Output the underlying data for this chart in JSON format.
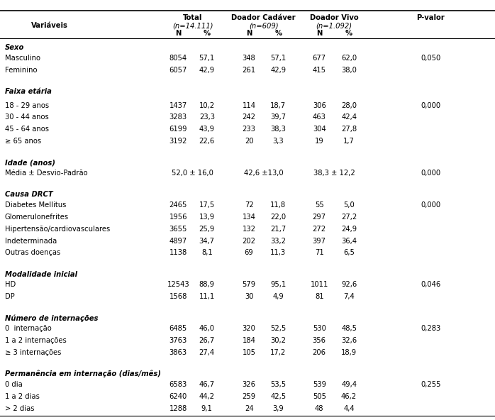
{
  "header": {
    "col1": "Variáveis",
    "col2_title": "Total",
    "col2_sub": "(n=14.111)",
    "col3_title": "Doador Cadáver",
    "col3_sub": "(n=609)",
    "col4_title": "Doador Vivo",
    "col4_sub": "(n=1.092)",
    "col5": "P-valor",
    "N_label": "N",
    "pct_label": "%"
  },
  "rows": [
    {
      "type": "section",
      "label": "Sexo"
    },
    {
      "type": "data",
      "label": "Masculino",
      "t_n": "8054",
      "t_p": "57,1",
      "dc_n": "348",
      "dc_p": "57,1",
      "dv_n": "677",
      "dv_p": "62,0",
      "pval": "0,050"
    },
    {
      "type": "data",
      "label": "Feminino",
      "t_n": "6057",
      "t_p": "42,9",
      "dc_n": "261",
      "dc_p": "42,9",
      "dv_n": "415",
      "dv_p": "38,0",
      "pval": ""
    },
    {
      "type": "blank"
    },
    {
      "type": "section",
      "label": "Faixa etária"
    },
    {
      "type": "blank_small"
    },
    {
      "type": "data",
      "label": "18 - 29 anos",
      "t_n": "1437",
      "t_p": "10,2",
      "dc_n": "114",
      "dc_p": "18,7",
      "dv_n": "306",
      "dv_p": "28,0",
      "pval": "0,000"
    },
    {
      "type": "data",
      "label": "30 - 44 anos",
      "t_n": "3283",
      "t_p": "23,3",
      "dc_n": "242",
      "dc_p": "39,7",
      "dv_n": "463",
      "dv_p": "42,4",
      "pval": ""
    },
    {
      "type": "data",
      "label": "45 - 64 anos",
      "t_n": "6199",
      "t_p": "43,9",
      "dc_n": "233",
      "dc_p": "38,3",
      "dv_n": "304",
      "dv_p": "27,8",
      "pval": ""
    },
    {
      "type": "data",
      "label": "≥ 65 anos",
      "t_n": "3192",
      "t_p": "22,6",
      "dc_n": "20",
      "dc_p": "3,3",
      "dv_n": "19",
      "dv_p": "1,7",
      "pval": ""
    },
    {
      "type": "blank"
    },
    {
      "type": "section",
      "label": "Idade (anos)"
    },
    {
      "type": "mean",
      "label": "Média ± Desvio-Padrão",
      "t_val": "52,0 ± 16,0",
      "dc_val": "42,6 ±13,0",
      "dv_val": "38,3 ± 12,2",
      "pval": "0,000"
    },
    {
      "type": "blank"
    },
    {
      "type": "section",
      "label": "Causa DRCT"
    },
    {
      "type": "data",
      "label": "Diabetes Mellitus",
      "t_n": "2465",
      "t_p": "17,5",
      "dc_n": "72",
      "dc_p": "11,8",
      "dv_n": "55",
      "dv_p": "5,0",
      "pval": "0,000"
    },
    {
      "type": "data",
      "label": "Glomerulonefrites",
      "t_n": "1956",
      "t_p": "13,9",
      "dc_n": "134",
      "dc_p": "22,0",
      "dv_n": "297",
      "dv_p": "27,2",
      "pval": ""
    },
    {
      "type": "data",
      "label": "Hipertensão/cardiovasculares",
      "t_n": "3655",
      "t_p": "25,9",
      "dc_n": "132",
      "dc_p": "21,7",
      "dv_n": "272",
      "dv_p": "24,9",
      "pval": ""
    },
    {
      "type": "data",
      "label": "Indeterminada",
      "t_n": "4897",
      "t_p": "34,7",
      "dc_n": "202",
      "dc_p": "33,2",
      "dv_n": "397",
      "dv_p": "36,4",
      "pval": ""
    },
    {
      "type": "data",
      "label": "Outras doenças",
      "t_n": "1138",
      "t_p": "8,1",
      "dc_n": "69",
      "dc_p": "11,3",
      "dv_n": "71",
      "dv_p": "6,5",
      "pval": ""
    },
    {
      "type": "blank"
    },
    {
      "type": "section",
      "label": "Modalidade inicial"
    },
    {
      "type": "data",
      "label": "HD",
      "t_n": "12543",
      "t_p": "88,9",
      "dc_n": "579",
      "dc_p": "95,1",
      "dv_n": "1011",
      "dv_p": "92,6",
      "pval": "0,046"
    },
    {
      "type": "data",
      "label": "DP",
      "t_n": "1568",
      "t_p": "11,1",
      "dc_n": "30",
      "dc_p": "4,9",
      "dv_n": "81",
      "dv_p": "7,4",
      "pval": ""
    },
    {
      "type": "blank"
    },
    {
      "type": "section",
      "label": "Número de internações"
    },
    {
      "type": "data",
      "label": "0  internação",
      "t_n": "6485",
      "t_p": "46,0",
      "dc_n": "320",
      "dc_p": "52,5",
      "dv_n": "530",
      "dv_p": "48,5",
      "pval": "0,283"
    },
    {
      "type": "data",
      "label": "1 a 2 internações",
      "t_n": "3763",
      "t_p": "26,7",
      "dc_n": "184",
      "dc_p": "30,2",
      "dv_n": "356",
      "dv_p": "32,6",
      "pval": ""
    },
    {
      "type": "data",
      "label": "≥ 3 internações",
      "t_n": "3863",
      "t_p": "27,4",
      "dc_n": "105",
      "dc_p": "17,2",
      "dv_n": "206",
      "dv_p": "18,9",
      "pval": ""
    },
    {
      "type": "blank"
    },
    {
      "type": "section",
      "label": "Permanência em internação (dias/mês)"
    },
    {
      "type": "data",
      "label": "0 dia",
      "t_n": "6583",
      "t_p": "46,7",
      "dc_n": "326",
      "dc_p": "53,5",
      "dv_n": "539",
      "dv_p": "49,4",
      "pval": "0,255"
    },
    {
      "type": "data",
      "label": "1 a 2 dias",
      "t_n": "6240",
      "t_p": "44,2",
      "dc_n": "259",
      "dc_p": "42,5",
      "dv_n": "505",
      "dv_p": "46,2",
      "pval": ""
    },
    {
      "type": "data",
      "label": "> 2 dias",
      "t_n": "1288",
      "t_p": "9,1",
      "dc_n": "24",
      "dc_p": "3,9",
      "dv_n": "48",
      "dv_p": "4,4",
      "pval": ""
    }
  ],
  "col_x": {
    "var": 0.01,
    "t_n": 0.36,
    "t_p": 0.418,
    "dc_n": 0.503,
    "dc_p": 0.562,
    "dv_n": 0.645,
    "dv_p": 0.705,
    "pval": 0.87
  },
  "font_size": 7.2,
  "bg_color": "#ffffff"
}
